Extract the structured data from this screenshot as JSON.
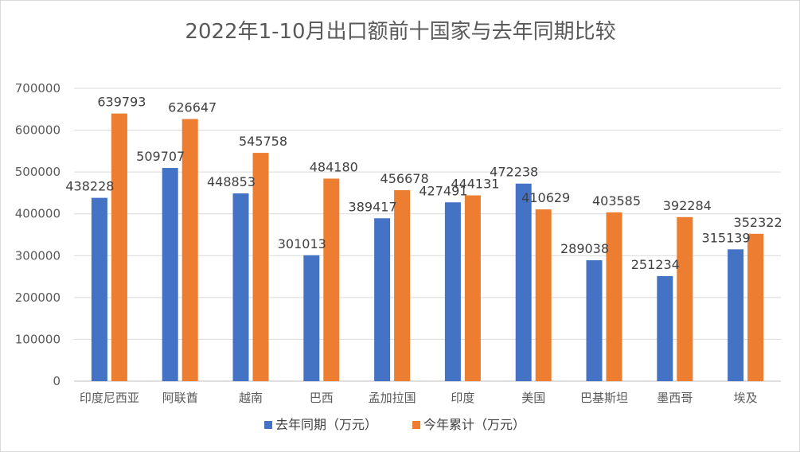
{
  "chart_data": {
    "type": "bar",
    "title": "2022年1-10月出口额前十国家与去年同期比较",
    "categories": [
      "印度尼西亚",
      "阿联酋",
      "越南",
      "巴西",
      "孟加拉国",
      "印度",
      "美国",
      "巴基斯坦",
      "墨西哥",
      "埃及"
    ],
    "series": [
      {
        "name": "去年同期（万元）",
        "color": "#4472c4",
        "values": [
          438228,
          509707,
          448853,
          301013,
          389417,
          427491,
          472238,
          289038,
          251234,
          315139
        ]
      },
      {
        "name": "今年累计（万元）",
        "color": "#ed7d31",
        "values": [
          639793,
          626647,
          545758,
          484180,
          456678,
          444131,
          410629,
          403585,
          392284,
          352322
        ]
      }
    ],
    "ylim": [
      0,
      700000
    ],
    "yticks": [
      0,
      100000,
      200000,
      300000,
      400000,
      500000,
      600000,
      700000
    ],
    "grid": true,
    "legend_position": "bottom",
    "data_labels": true
  }
}
